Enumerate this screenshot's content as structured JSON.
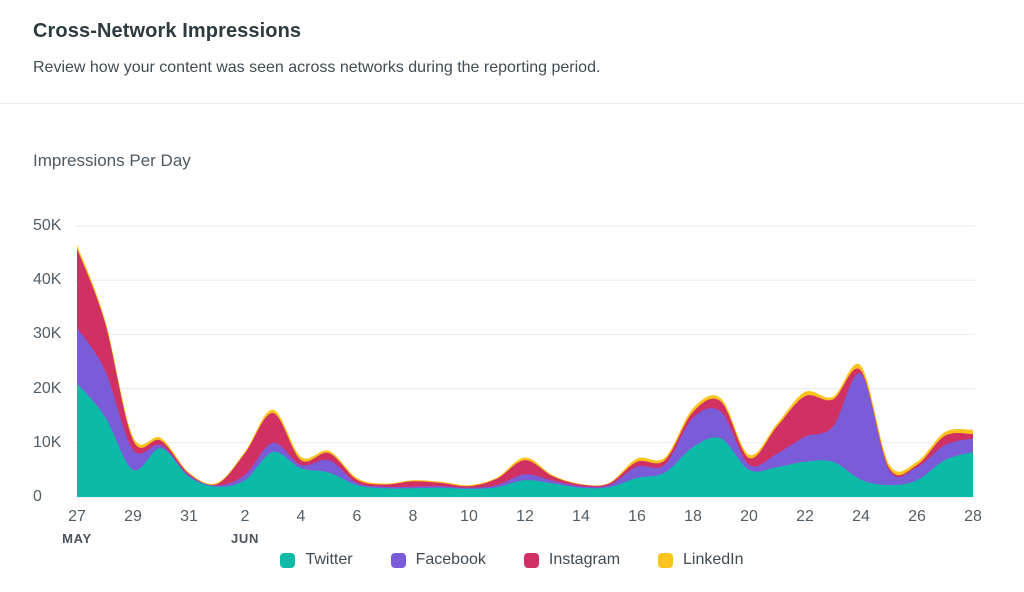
{
  "header": {
    "title": "Cross-Network Impressions",
    "subtitle": "Review how your content was seen across networks during the reporting period."
  },
  "chart": {
    "title": "Impressions Per Day"
  },
  "chart_data": {
    "type": "area",
    "stacked": true,
    "title": "Impressions Per Day",
    "xlabel": "",
    "ylabel": "",
    "ylim": [
      0,
      50000
    ],
    "y_ticks": [
      "0",
      "10K",
      "20K",
      "30K",
      "40K",
      "50K"
    ],
    "grid": "horizontal",
    "legend_position": "bottom",
    "x_tick_every": 2,
    "x": [
      "27",
      "28",
      "29",
      "30",
      "31",
      "1",
      "2",
      "3",
      "4",
      "5",
      "6",
      "7",
      "8",
      "9",
      "10",
      "11",
      "12",
      "13",
      "14",
      "15",
      "16",
      "17",
      "18",
      "19",
      "20",
      "21",
      "22",
      "23",
      "24",
      "25",
      "26",
      "27",
      "28"
    ],
    "months": [
      {
        "i": 0,
        "label": "MAY"
      },
      {
        "i": 6,
        "label": "JUN"
      }
    ],
    "series": [
      {
        "name": "Twitter",
        "color": "#0cbba7",
        "values": [
          21000,
          14800,
          5000,
          9000,
          3700,
          1900,
          3100,
          8300,
          5300,
          4500,
          2200,
          1600,
          1600,
          1700,
          1500,
          1800,
          3100,
          2500,
          1700,
          1800,
          3500,
          4500,
          9200,
          10800,
          5000,
          5500,
          6500,
          6500,
          3200,
          2200,
          3100,
          6800,
          8300
        ]
      },
      {
        "name": "Facebook",
        "color": "#7a5cd9",
        "values": [
          10200,
          8600,
          3700,
          600,
          300,
          200,
          1000,
          1700,
          600,
          2300,
          400,
          300,
          300,
          300,
          200,
          400,
          1100,
          500,
          300,
          400,
          2100,
          1500,
          5400,
          4900,
          1000,
          2500,
          4600,
          6500,
          19500,
          2800,
          2400,
          2800,
          2500
        ]
      },
      {
        "name": "Instagram",
        "color": "#d13063",
        "values": [
          14600,
          8800,
          1800,
          800,
          300,
          300,
          4000,
          5500,
          900,
          1300,
          600,
          400,
          1000,
          600,
          300,
          1200,
          2600,
          800,
          300,
          300,
          900,
          800,
          1100,
          1900,
          1200,
          5000,
          7500,
          5000,
          600,
          400,
          400,
          1700,
          800
        ]
      },
      {
        "name": "LinkedIn",
        "color": "#fbc41c",
        "values": [
          700,
          500,
          600,
          500,
          200,
          200,
          300,
          600,
          600,
          400,
          300,
          200,
          200,
          200,
          200,
          200,
          500,
          200,
          100,
          100,
          600,
          500,
          700,
          600,
          600,
          500,
          800,
          500,
          900,
          700,
          600,
          700,
          800
        ]
      }
    ]
  }
}
